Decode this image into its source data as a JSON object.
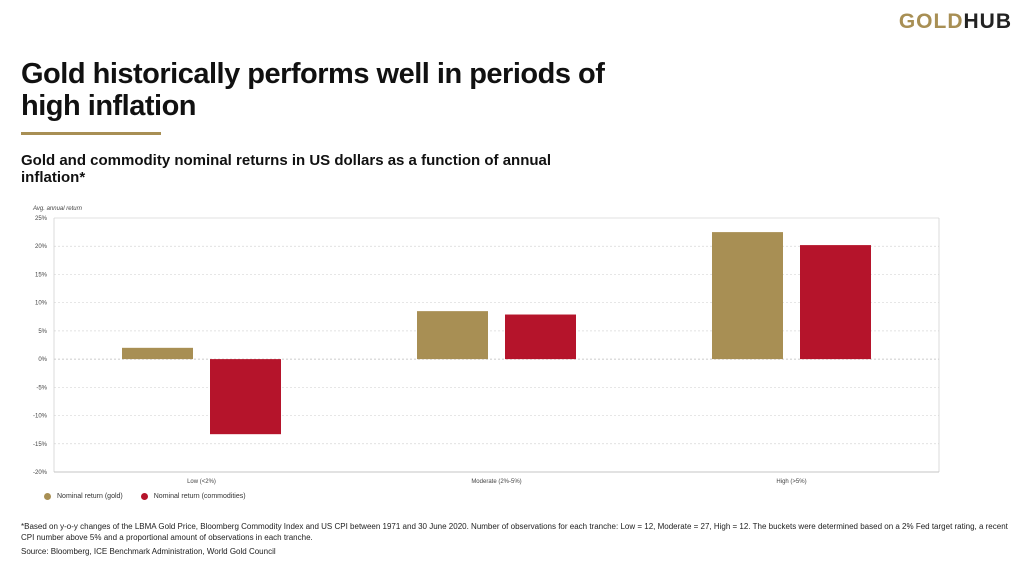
{
  "header": {
    "logo_gold": "GOLD",
    "logo_hub": "HUB",
    "title": "Gold historically performs well in periods of high inflation",
    "subtitle": "Gold and commodity nominal returns in US dollars as a function of annual inflation*"
  },
  "colors": {
    "gold": "#a88f54",
    "commodities": "#b5142b",
    "accent": "#a88f54"
  },
  "chart_data": {
    "type": "bar",
    "ylabel": "Avg. annual return",
    "xlabel": "",
    "categories": [
      "Low (<2%)",
      "Moderate (2%-5%)",
      "High (>5%)"
    ],
    "series": [
      {
        "name": "Nominal return (gold)",
        "values": [
          2.0,
          8.5,
          22.5
        ]
      },
      {
        "name": "Nominal return (commodities)",
        "values": [
          -13.3,
          7.9,
          20.2
        ]
      }
    ],
    "ylim": [
      -20,
      25
    ],
    "yticks": [
      25,
      20,
      15,
      10,
      5,
      0,
      -5,
      -10,
      -15,
      -20
    ],
    "ytick_labels": [
      "25%",
      "20%",
      "15%",
      "10%",
      "5%",
      "0%",
      "-5%",
      "-10%",
      "-15%",
      "-20%"
    ],
    "grid": true,
    "legend_position": "bottom-left"
  },
  "footnote": "*Based on y-o-y changes of the LBMA Gold Price, Bloomberg Commodity Index and US CPI between 1971 and 30 June 2020. Number of observations for each tranche: Low = 12, Moderate = 27, High = 12. The buckets were determined based on a 2% Fed target rating, a recent CPI number above 5% and a proportional amount of observations in each tranche.",
  "source": "Source: Bloomberg, ICE Benchmark Administration, World Gold Council"
}
